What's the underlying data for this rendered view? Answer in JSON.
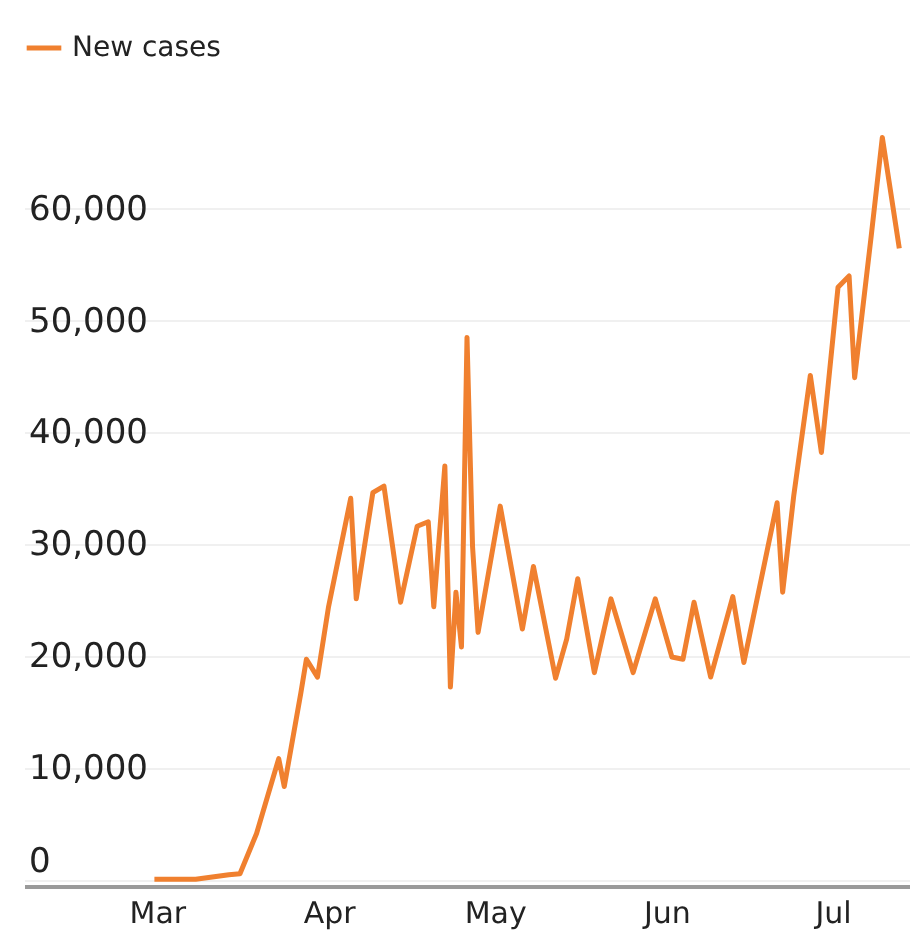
{
  "chart_data": {
    "type": "line",
    "x": [
      "--03-01",
      "--03-08",
      "--03-14",
      "--03-16",
      "--03-19",
      "--03-23",
      "--03-24",
      "--03-27",
      "--03-28",
      "--03-30",
      "--04-01",
      "--04-05",
      "--04-06",
      "--04-09",
      "--04-11",
      "--04-14",
      "--04-17",
      "--04-19",
      "--04-20",
      "--04-22",
      "--04-23",
      "--04-24",
      "--04-25",
      "--04-26",
      "--04-27",
      "--04-28",
      "--05-02",
      "--05-06",
      "--05-08",
      "--05-12",
      "--05-14",
      "--05-16",
      "--05-19",
      "--05-22",
      "--05-26",
      "--05-30",
      "--06-02",
      "--06-04",
      "--06-06",
      "--06-09",
      "--06-13",
      "--06-15",
      "--06-21",
      "--06-22",
      "--06-24",
      "--06-27",
      "--06-29",
      "--07-02",
      "--07-04",
      "--07-05",
      "--07-08",
      "--07-10",
      "--07-13"
    ],
    "series": [
      {
        "name": "New cases",
        "color": "#f0802f",
        "values": [
          0,
          0,
          400,
          500,
          4100,
          10800,
          8300,
          16700,
          19700,
          18100,
          24400,
          34100,
          25100,
          34600,
          35200,
          24800,
          31600,
          32000,
          24400,
          37000,
          17200,
          25700,
          20800,
          48500,
          29800,
          22100,
          33400,
          22400,
          28000,
          18000,
          21500,
          26900,
          18500,
          25100,
          18500,
          25100,
          19900,
          19700,
          24800,
          18100,
          25300,
          19400,
          33700,
          25700,
          34300,
          45100,
          38200,
          53000,
          54000,
          44900,
          57600,
          66400,
          56700
        ]
      }
    ],
    "xlim": [
      "--02-05",
      "--07-15"
    ],
    "xticks": [
      {
        "value": "--03-01",
        "label": "Mar"
      },
      {
        "value": "--04-01",
        "label": "Apr"
      },
      {
        "value": "--05-01",
        "label": "May"
      },
      {
        "value": "--06-01",
        "label": "Jun"
      },
      {
        "value": "--07-01",
        "label": "Jul"
      }
    ],
    "ylim": [
      -600,
      78700
    ],
    "yticks": [
      {
        "value": 0,
        "label": "0"
      },
      {
        "value": 10000,
        "label": "10,000"
      },
      {
        "value": 20000,
        "label": "20,000"
      },
      {
        "value": 30000,
        "label": "30,000"
      },
      {
        "value": 40000,
        "label": "40,000"
      },
      {
        "value": 50000,
        "label": "50,000"
      },
      {
        "value": 60000,
        "label": "60,000"
      }
    ],
    "grid": "y",
    "legend": "top left",
    "marker": "none",
    "line_style": "solid"
  }
}
